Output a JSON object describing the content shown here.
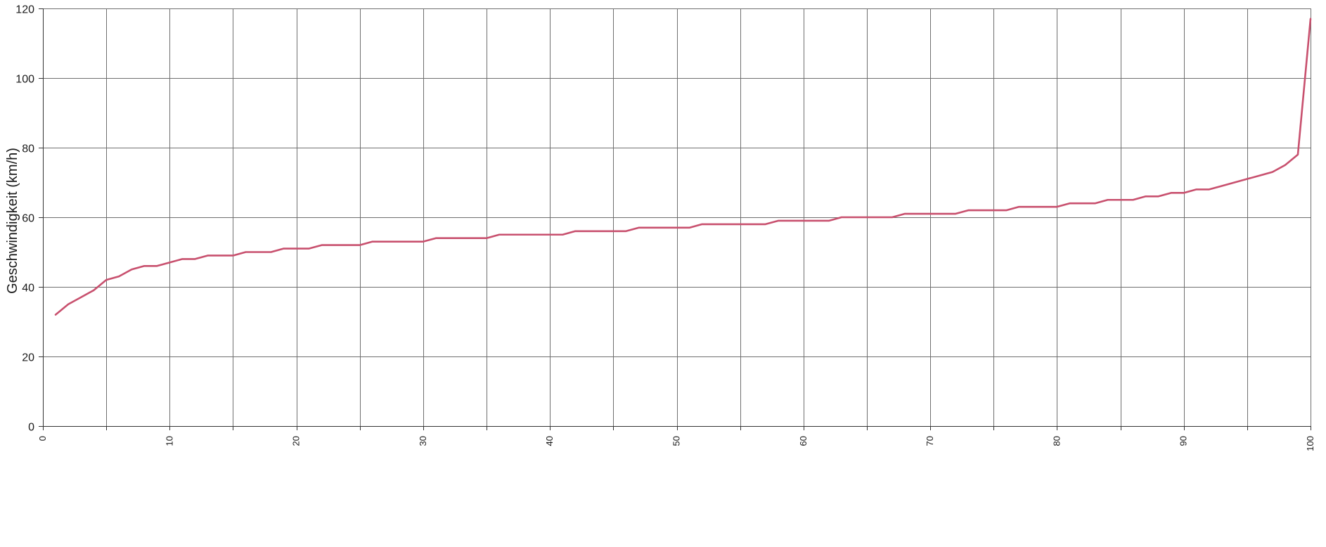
{
  "chart_data": {
    "type": "line",
    "title": "",
    "xlabel": "",
    "ylabel": "Geschwindigkeit (km/h)",
    "xlim": [
      0,
      100
    ],
    "ylim": [
      0,
      120
    ],
    "x_ticks": [
      "0",
      "10",
      "20",
      "30",
      "40",
      "50",
      "60",
      "70",
      "80",
      "90",
      "100"
    ],
    "y_ticks": [
      "0",
      "20",
      "40",
      "60",
      "80",
      "100",
      "120"
    ],
    "x_grid_step": 5,
    "y_grid_step": 20,
    "grid": true,
    "legend": "none",
    "series_color": "#c8506e",
    "x": [
      1,
      2,
      3,
      4,
      5,
      6,
      7,
      8,
      9,
      10,
      11,
      12,
      13,
      14,
      15,
      16,
      17,
      18,
      19,
      20,
      21,
      22,
      23,
      24,
      25,
      26,
      27,
      28,
      29,
      30,
      31,
      32,
      33,
      34,
      35,
      36,
      37,
      38,
      39,
      40,
      41,
      42,
      43,
      44,
      45,
      46,
      47,
      48,
      49,
      50,
      51,
      52,
      53,
      54,
      55,
      56,
      57,
      58,
      59,
      60,
      61,
      62,
      63,
      64,
      65,
      66,
      67,
      68,
      69,
      70,
      71,
      72,
      73,
      74,
      75,
      76,
      77,
      78,
      79,
      80,
      81,
      82,
      83,
      84,
      85,
      86,
      87,
      88,
      89,
      90,
      91,
      92,
      93,
      94,
      95,
      96,
      97,
      98,
      99,
      100
    ],
    "series": [
      {
        "values": [
          32,
          35,
          37,
          39,
          42,
          43,
          45,
          46,
          46,
          47,
          48,
          48,
          49,
          49,
          49,
          50,
          50,
          50,
          51,
          51,
          51,
          52,
          52,
          52,
          52,
          53,
          53,
          53,
          53,
          53,
          54,
          54,
          54,
          54,
          54,
          55,
          55,
          55,
          55,
          55,
          55,
          56,
          56,
          56,
          56,
          56,
          57,
          57,
          57,
          57,
          57,
          58,
          58,
          58,
          58,
          58,
          58,
          59,
          59,
          59,
          59,
          59,
          60,
          60,
          60,
          60,
          60,
          61,
          61,
          61,
          61,
          61,
          62,
          62,
          62,
          62,
          63,
          63,
          63,
          63,
          64,
          64,
          64,
          65,
          65,
          65,
          66,
          66,
          67,
          67,
          68,
          68,
          69,
          70,
          71,
          72,
          73,
          75,
          78,
          117
        ]
      }
    ]
  }
}
